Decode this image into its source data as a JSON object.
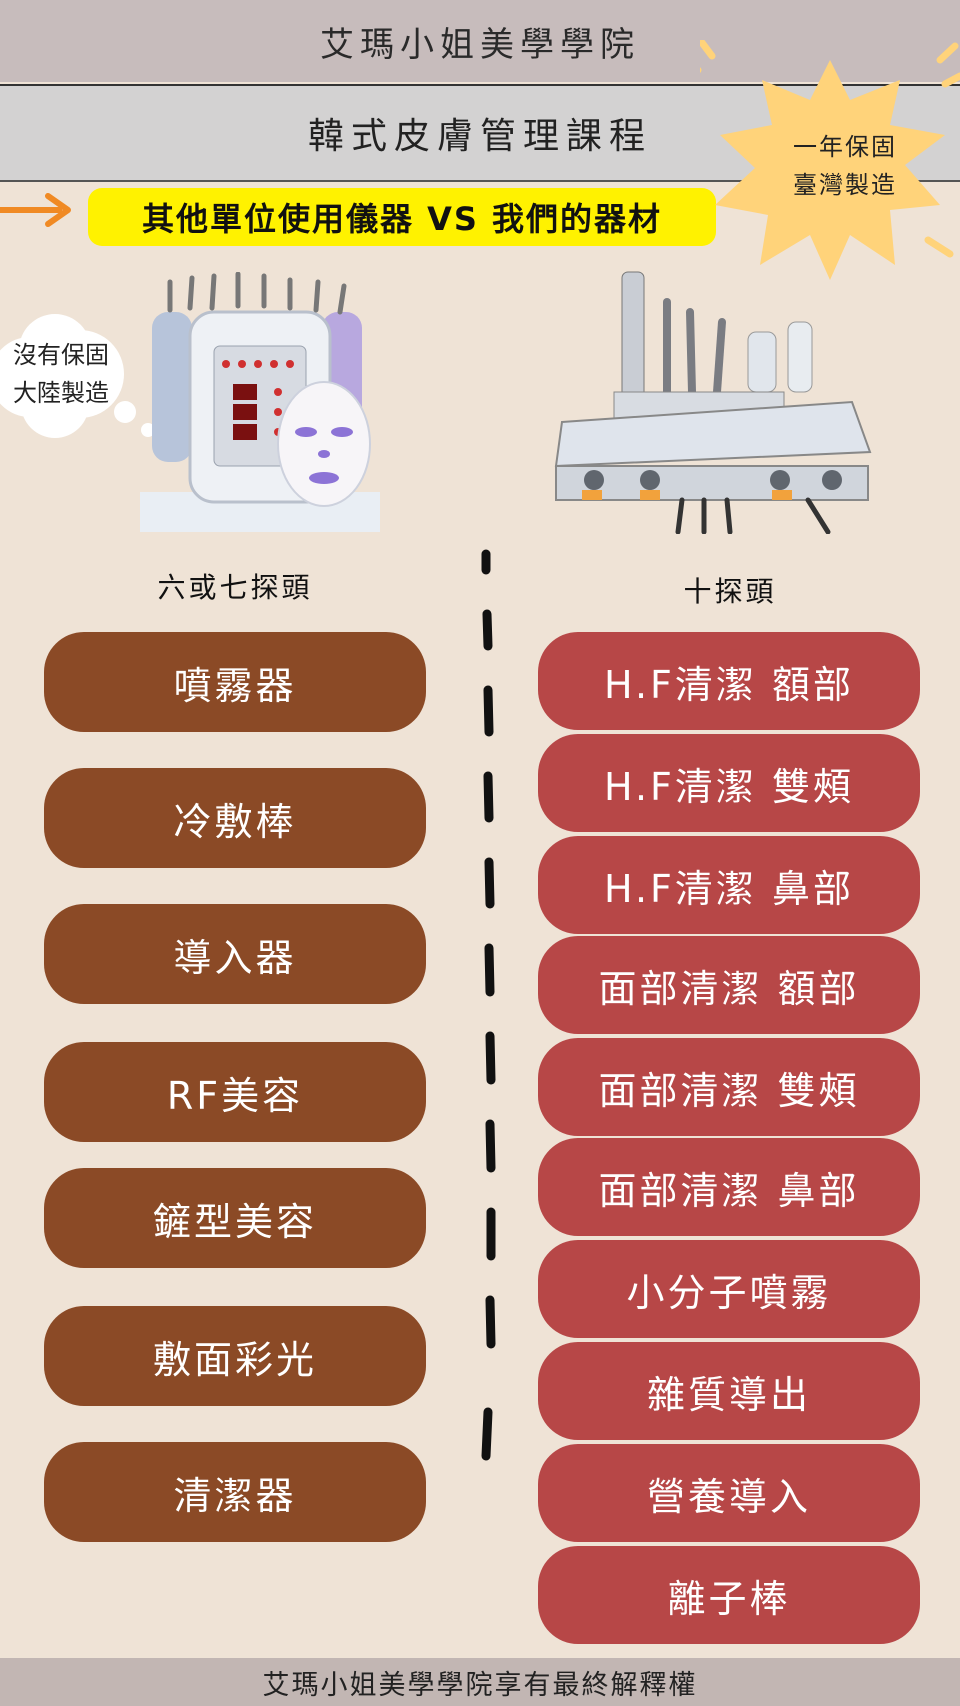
{
  "header": {
    "academy_name": "艾瑪小姐美學學院",
    "course_title": "韓式皮膚管理課程"
  },
  "comparison_banner": "其他單位使用儀器 VS 我們的器材",
  "callouts": {
    "ours_line1": "一年保固",
    "ours_line2": "臺灣製造",
    "others_line1": "沒有保固",
    "others_line2": "大陸製造"
  },
  "left_column": {
    "heading": "六或七探頭",
    "items": [
      "噴霧器",
      "冷敷棒",
      "導入器",
      "RF美容",
      "鏟型美容",
      "敷面彩光",
      "清潔器"
    ]
  },
  "right_column": {
    "heading": "十探頭",
    "items": [
      "H.F清潔 額部",
      "H.F清潔 雙頰",
      "H.F清潔 鼻部",
      "面部清潔 額部",
      "面部清潔 雙頰",
      "面部清潔 鼻部",
      "小分子噴霧",
      "雜質導出",
      "營養導入",
      "離子棒"
    ]
  },
  "footer": "艾瑪小姐美學學院享有最終解釋權",
  "colors": {
    "background": "#efe3d6",
    "left_pill": "#8b4a26",
    "right_pill": "#b74747",
    "banner": "#fff200",
    "burst": "#ffd37a",
    "arrow": "#f08a24"
  }
}
